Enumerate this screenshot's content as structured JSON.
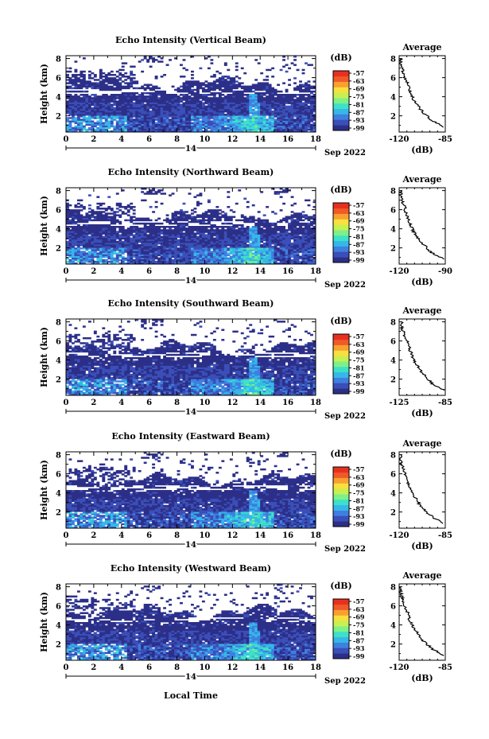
{
  "figure": {
    "shared_xlabel": "Local Time",
    "date_label": "14",
    "month_year": "Sep 2022",
    "colorbar_unit": "(dB)",
    "colorbar_ticks": [
      "-57",
      "-63",
      "-69",
      "-75",
      "-81",
      "-87",
      "-93",
      "-99"
    ],
    "average_title": "Average",
    "average_xlabel": "(dB)"
  },
  "colors": {
    "colormap": [
      "#2c2f88",
      "#3a4fb8",
      "#3f7fe0",
      "#35b8e8",
      "#3ee0c8",
      "#7ef08a",
      "#c8f050",
      "#f8e040",
      "#f8a030",
      "#f05a28",
      "#e83020"
    ],
    "background": "#ffffff",
    "axis": "#000000"
  },
  "chart_data": [
    {
      "type": "heatmap",
      "title": "Echo Intensity (Vertical Beam)",
      "xlabel": "",
      "ylabel": "Height (km)",
      "x_ticks": [
        0,
        2,
        4,
        6,
        8,
        10,
        12,
        14,
        16,
        18
      ],
      "y_ticks": [
        2,
        4,
        6,
        8
      ],
      "xlim": [
        0,
        18
      ],
      "ylim": [
        0.3,
        8.3
      ],
      "colorbar": {
        "ticks": [
          -57,
          -63,
          -69,
          -75,
          -81,
          -87,
          -93,
          -99
        ],
        "range": [
          -99,
          -57
        ]
      },
      "average_profile": {
        "type": "line",
        "title": "Average",
        "xlabel": "(dB)",
        "x_ticks": [
          -120,
          -85
        ],
        "xlim": [
          -120,
          -85
        ],
        "y_ticks": [
          2,
          4,
          6,
          8
        ],
        "heights": [
          0.8,
          1.5,
          2.5,
          3.5,
          4.5,
          5.5,
          6.5,
          7.5,
          8.0
        ],
        "values": [
          -86,
          -95,
          -103,
          -108,
          -112,
          -114,
          -117,
          -119,
          -119
        ]
      }
    },
    {
      "type": "heatmap",
      "title": "Echo Intensity (Northward Beam)",
      "xlabel": "",
      "ylabel": "Height (km)",
      "x_ticks": [
        0,
        2,
        4,
        6,
        8,
        10,
        12,
        14,
        16,
        18
      ],
      "y_ticks": [
        2,
        4,
        6,
        8
      ],
      "xlim": [
        0,
        18
      ],
      "ylim": [
        0.3,
        8.3
      ],
      "colorbar": {
        "ticks": [
          -57,
          -63,
          -69,
          -75,
          -81,
          -87,
          -93,
          -99
        ],
        "range": [
          -99,
          -57
        ]
      },
      "average_profile": {
        "type": "line",
        "title": "Average",
        "xlabel": "(dB)",
        "x_ticks": [
          -120,
          -90
        ],
        "xlim": [
          -120,
          -90
        ],
        "y_ticks": [
          2,
          4,
          6,
          8
        ],
        "heights": [
          0.8,
          1.5,
          2.5,
          3.5,
          4.5,
          5.5,
          6.5,
          7.5,
          8.0
        ],
        "values": [
          -91,
          -99,
          -105,
          -110,
          -113,
          -115,
          -117,
          -119,
          -119
        ]
      }
    },
    {
      "type": "heatmap",
      "title": "Echo Intensity (Southward Beam)",
      "xlabel": "",
      "ylabel": "Height (km)",
      "x_ticks": [
        0,
        2,
        4,
        6,
        8,
        10,
        12,
        14,
        16,
        18
      ],
      "y_ticks": [
        2,
        4,
        6,
        8
      ],
      "xlim": [
        0,
        18
      ],
      "ylim": [
        0.3,
        8.3
      ],
      "colorbar": {
        "ticks": [
          -57,
          -63,
          -69,
          -75,
          -81,
          -87,
          -93,
          -99
        ],
        "range": [
          -99,
          -57
        ]
      },
      "average_profile": {
        "type": "line",
        "title": "Average",
        "xlabel": "(dB)",
        "x_ticks": [
          -125,
          -85
        ],
        "xlim": [
          -125,
          -85
        ],
        "y_ticks": [
          2,
          4,
          6,
          8
        ],
        "heights": [
          0.8,
          1.5,
          2.5,
          3.5,
          4.5,
          5.5,
          6.5,
          7.5,
          8.0
        ],
        "values": [
          -86,
          -96,
          -104,
          -110,
          -114,
          -117,
          -120,
          -123,
          -123
        ]
      }
    },
    {
      "type": "heatmap",
      "title": "Echo Intensity (Eastward Beam)",
      "xlabel": "",
      "ylabel": "Height (km)",
      "x_ticks": [
        0,
        2,
        4,
        6,
        8,
        10,
        12,
        14,
        16,
        18
      ],
      "y_ticks": [
        2,
        4,
        6,
        8
      ],
      "xlim": [
        0,
        18
      ],
      "ylim": [
        0.3,
        8.3
      ],
      "colorbar": {
        "ticks": [
          -57,
          -63,
          -69,
          -75,
          -81,
          -87,
          -93,
          -99
        ],
        "range": [
          -99,
          -57
        ]
      },
      "average_profile": {
        "type": "line",
        "title": "Average",
        "xlabel": "(dB)",
        "x_ticks": [
          -120,
          -85
        ],
        "xlim": [
          -120,
          -85
        ],
        "y_ticks": [
          2,
          4,
          6,
          8
        ],
        "heights": [
          0.8,
          1.5,
          2.5,
          3.5,
          4.5,
          5.5,
          6.5,
          7.5,
          8.0
        ],
        "values": [
          -86,
          -95,
          -103,
          -108,
          -112,
          -114,
          -117,
          -119,
          -119
        ]
      }
    },
    {
      "type": "heatmap",
      "title": "Echo Intensity (Westward Beam)",
      "xlabel": "Local Time",
      "ylabel": "Height (km)",
      "x_ticks": [
        0,
        2,
        4,
        6,
        8,
        10,
        12,
        14,
        16,
        18
      ],
      "y_ticks": [
        2,
        4,
        6,
        8
      ],
      "xlim": [
        0,
        18
      ],
      "ylim": [
        0.3,
        8.3
      ],
      "colorbar": {
        "ticks": [
          -57,
          -63,
          -69,
          -75,
          -81,
          -87,
          -93,
          -99
        ],
        "range": [
          -99,
          -57
        ]
      },
      "average_profile": {
        "type": "line",
        "title": "Average",
        "xlabel": "(dB)",
        "x_ticks": [
          -120,
          -85
        ],
        "xlim": [
          -120,
          -85
        ],
        "y_ticks": [
          2,
          4,
          6,
          8
        ],
        "heights": [
          0.8,
          1.5,
          2.5,
          3.5,
          4.5,
          5.5,
          6.5,
          7.5,
          8.0
        ],
        "values": [
          -86,
          -95,
          -103,
          -108,
          -112,
          -114,
          -117,
          -119,
          -119
        ]
      }
    }
  ]
}
